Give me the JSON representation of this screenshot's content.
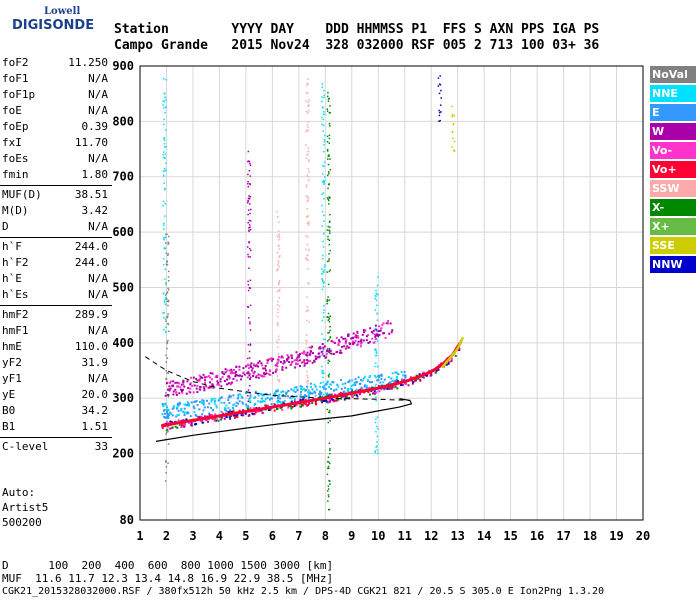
{
  "logo": {
    "line1": "Lowell",
    "line2": "DIGISONDE"
  },
  "header": {
    "row1": "Station        YYYY DAY    DDD HHMMSS P1  FFS S AXN PPS IGA PS",
    "row2": "Campo Grande   2015 Nov24  328 032000 RSF 005 2 713 100 03+ 36"
  },
  "params": [
    {
      "label": "foF2",
      "value": "11.250"
    },
    {
      "label": "foF1",
      "value": "N/A"
    },
    {
      "label": "foF1p",
      "value": "N/A"
    },
    {
      "label": "foE",
      "value": "N/A"
    },
    {
      "label": "foEp",
      "value": "0.39"
    },
    {
      "label": "fxI",
      "value": "11.70"
    },
    {
      "label": "foEs",
      "value": "N/A"
    },
    {
      "label": "fmin",
      "value": "1.80"
    },
    {
      "label": "MUF(D)",
      "value": "38.51"
    },
    {
      "label": "M(D)",
      "value": "3.42"
    },
    {
      "label": "D",
      "value": "N/A"
    },
    {
      "label": "h`F",
      "value": "244.0"
    },
    {
      "label": "h`F2",
      "value": "244.0"
    },
    {
      "label": "h`E",
      "value": "N/A"
    },
    {
      "label": "h`Es",
      "value": "N/A"
    },
    {
      "label": "hmF2",
      "value": "289.9"
    },
    {
      "label": "hmF1",
      "value": "N/A"
    },
    {
      "label": "hmE",
      "value": "110.0"
    },
    {
      "label": "yF2",
      "value": "31.9"
    },
    {
      "label": "yF1",
      "value": "N/A"
    },
    {
      "label": "yE",
      "value": "20.0"
    },
    {
      "label": "B0",
      "value": "34.2"
    },
    {
      "label": "B1",
      "value": "1.51"
    },
    {
      "label": "C-level",
      "value": "33"
    }
  ],
  "auto": {
    "line1": "Auto:",
    "line2": "Artist5",
    "line3": "500200"
  },
  "footer": {
    "d_row": "D      100  200  400  600  800 1000 1500 3000 [km]",
    "muf_row": "MUF  11.6 11.7 12.3 13.4 14.8 16.9 22.9 38.5 [MHz]",
    "info": "CGK21_2015328032000.RSF / 380fx512h 50 kHz 2.5 km / DPS-4D CGK21 821 / 20.5 S 305.0 E Ion2Png 1.3.20"
  },
  "legend": [
    {
      "label": "NoVal",
      "color": "#808080"
    },
    {
      "label": "NNE",
      "color": "#00e0ff"
    },
    {
      "label": "E",
      "color": "#3399ff"
    },
    {
      "label": "W",
      "color": "#aa00aa"
    },
    {
      "label": "Vo-",
      "color": "#ff33cc"
    },
    {
      "label": "Vo+",
      "color": "#ff0033"
    },
    {
      "label": "SSW",
      "color": "#ffaaaa"
    },
    {
      "label": "X-",
      "color": "#008800"
    },
    {
      "label": "X+",
      "color": "#66bb44"
    },
    {
      "label": "SSE",
      "color": "#cccc00"
    },
    {
      "label": "NNW",
      "color": "#0000cc"
    }
  ],
  "chart_data": {
    "type": "scatter",
    "xlim": [
      1,
      20
    ],
    "ylim": [
      80,
      900
    ],
    "x_ticks": [
      1,
      2,
      3,
      4,
      5,
      6,
      7,
      8,
      9,
      10,
      11,
      12,
      13,
      14,
      15,
      16,
      17,
      18,
      19,
      20
    ],
    "y_ticks": [
      80,
      200,
      300,
      400,
      500,
      600,
      700,
      800,
      900
    ],
    "grid": true,
    "legend_placement": "right",
    "traces": {
      "o_trace": {
        "color": "#ff0033",
        "x": [
          1.8,
          3,
          4,
          5,
          6,
          7,
          8,
          9,
          10,
          11,
          11.5,
          12,
          12.4,
          12.8,
          13.1
        ],
        "y": [
          250,
          260,
          268,
          276,
          284,
          292,
          300,
          309,
          318,
          330,
          338,
          348,
          360,
          378,
          400
        ]
      },
      "x_trace": {
        "color": "#cccc00",
        "x": [
          12.4,
          12.7,
          13.0,
          13.2
        ],
        "y": [
          355,
          372,
          390,
          410
        ]
      },
      "profile": {
        "color": "#000000",
        "x": [
          1.6,
          3,
          5,
          7,
          9,
          10,
          10.8,
          11.25,
          11.2,
          10.8
        ],
        "y": [
          222,
          233,
          246,
          258,
          268,
          277,
          284,
          289.9,
          296,
          299
        ]
      },
      "dashed_extension": {
        "color": "#000000",
        "x": [
          1.2,
          2,
          3,
          4,
          6,
          8,
          10,
          11.2
        ],
        "y": [
          375,
          350,
          330,
          318,
          305,
          300,
          298,
          296
        ]
      },
      "w_layer": {
        "color": "#aa00aa",
        "x": [
          1.9,
          3,
          4,
          5,
          6,
          7,
          8,
          9,
          10,
          10.5
        ],
        "y": [
          320,
          325,
          338,
          348,
          360,
          372,
          390,
          405,
          420,
          430
        ]
      },
      "e_layer": {
        "color": "#3399ff",
        "x": [
          1.8,
          3,
          4,
          5,
          6,
          7,
          8,
          9,
          10,
          11
        ],
        "y": [
          278,
          282,
          290,
          298,
          305,
          312,
          318,
          325,
          330,
          338
        ]
      }
    },
    "vertical_bands": [
      {
        "x": 1.9,
        "ymin": 420,
        "ymax": 880,
        "color": "#00e0ff"
      },
      {
        "x": 2.0,
        "ymin": 150,
        "ymax": 600,
        "color": "#808080"
      },
      {
        "x": 5.1,
        "ymin": 280,
        "ymax": 750,
        "color": "#aa00aa"
      },
      {
        "x": 6.2,
        "ymin": 300,
        "ymax": 640,
        "color": "#ffaaaa"
      },
      {
        "x": 7.3,
        "ymin": 300,
        "ymax": 880,
        "color": "#ffaaaa"
      },
      {
        "x": 7.9,
        "ymin": 300,
        "ymax": 880,
        "color": "#00e0ff"
      },
      {
        "x": 8.1,
        "ymin": 100,
        "ymax": 860,
        "color": "#008800"
      },
      {
        "x": 9.9,
        "ymin": 200,
        "ymax": 520,
        "color": "#00e0ff"
      },
      {
        "x": 12.3,
        "ymin": 800,
        "ymax": 890,
        "color": "#0000cc"
      },
      {
        "x": 12.8,
        "ymin": 740,
        "ymax": 830,
        "color": "#cccc00"
      }
    ]
  }
}
